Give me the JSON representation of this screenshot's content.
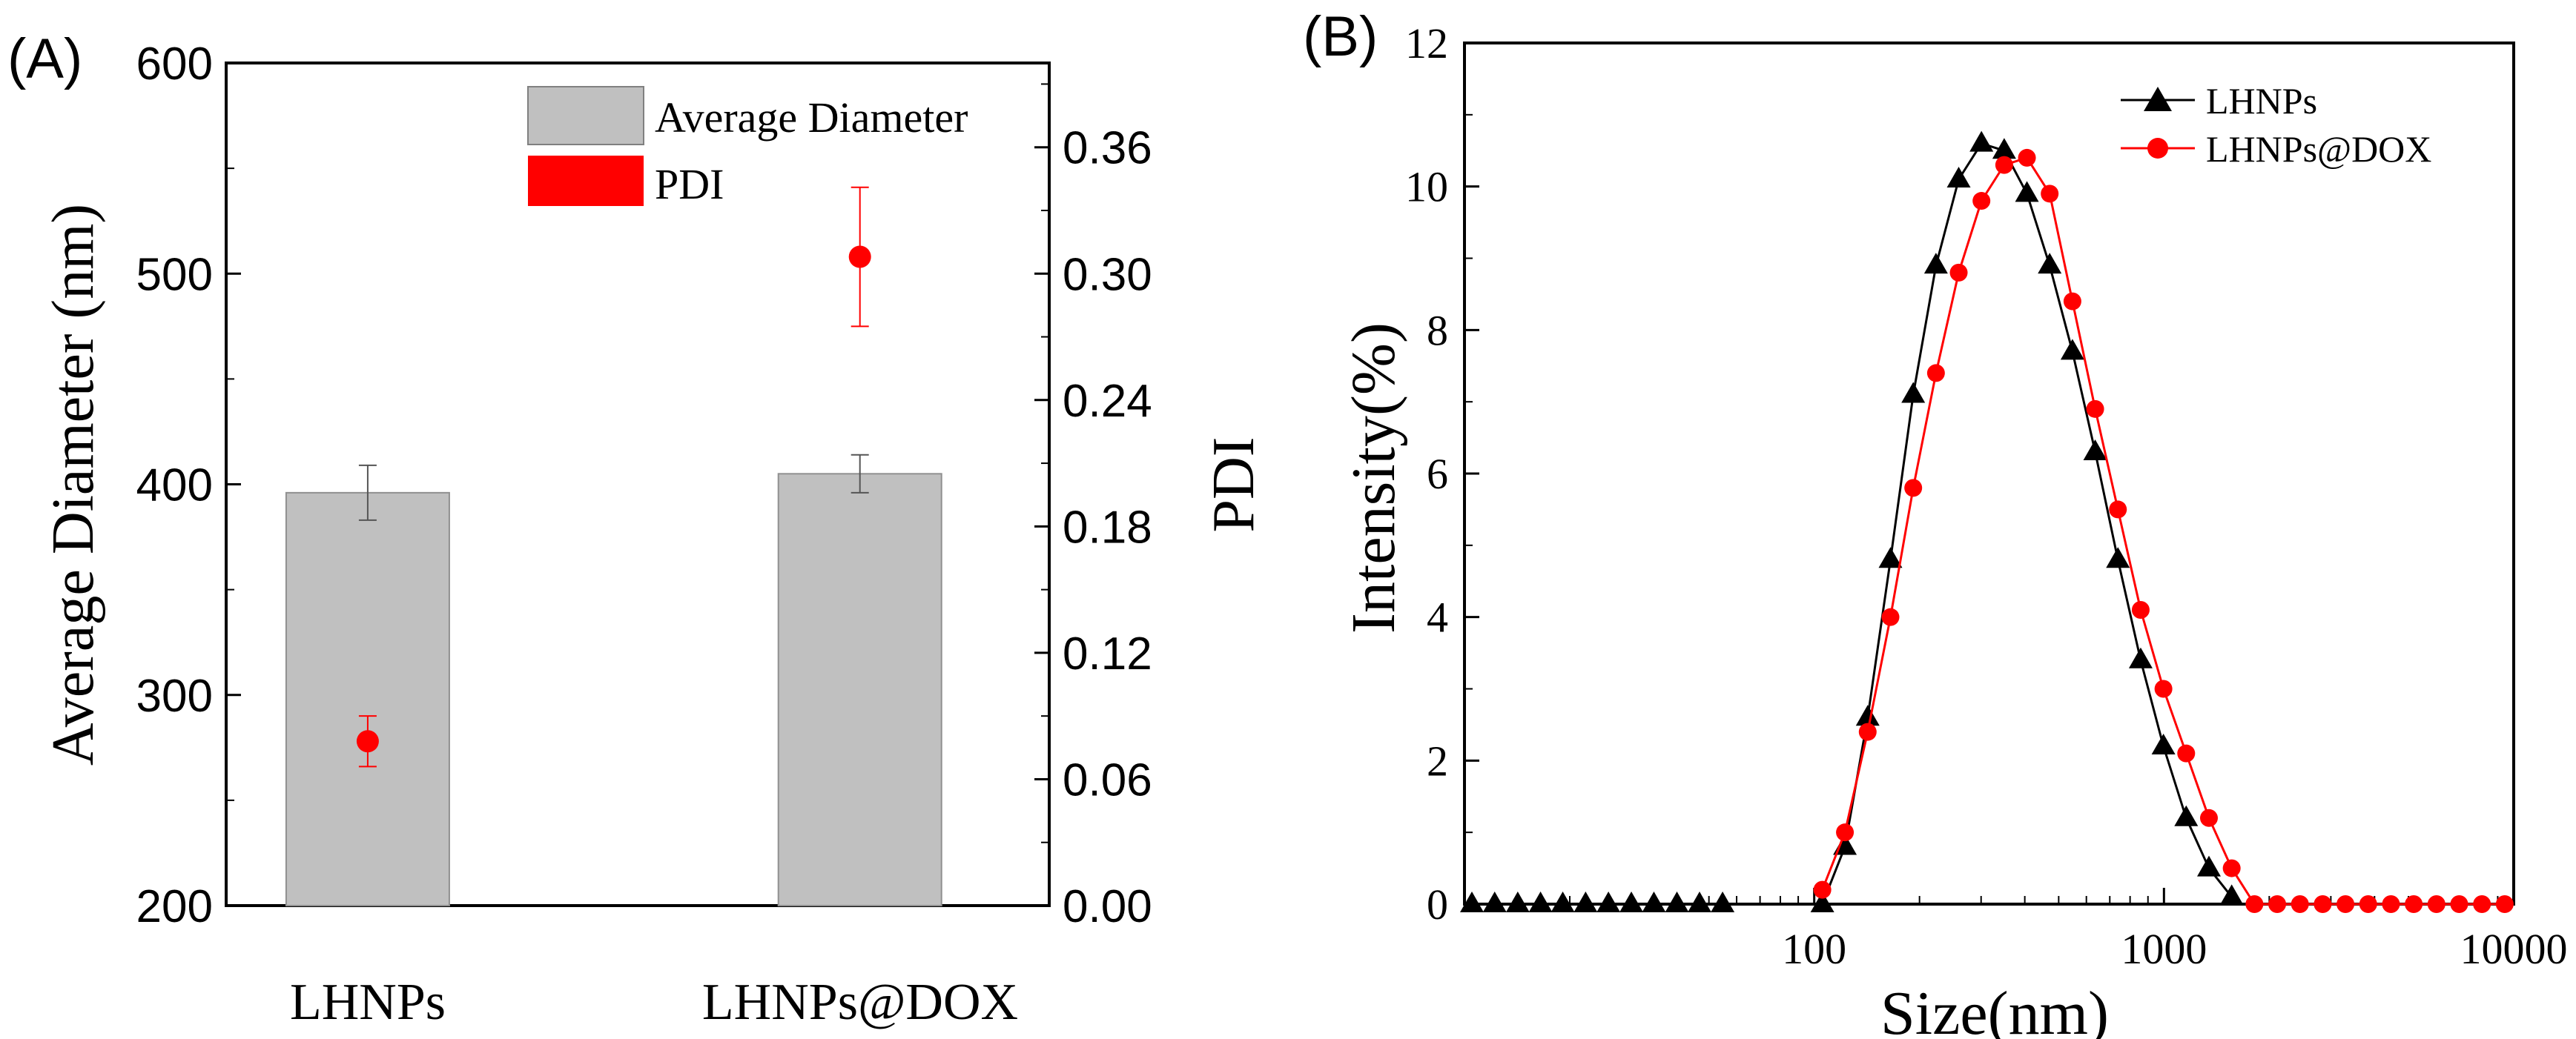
{
  "chart_data": [
    {
      "type": "bar",
      "panel_label": "(A)",
      "categories": [
        "LHNPs",
        "LHNPs@DOX"
      ],
      "ylabel": "Average Diameter (nm)",
      "ylabel_right": "PDI",
      "ylim": [
        200,
        600
      ],
      "yticks": [
        "200",
        "300",
        "400",
        "500",
        "600"
      ],
      "ylim_right": [
        0,
        0.4
      ],
      "yticks_right": [
        "0.00",
        "0.06",
        "0.12",
        "0.18",
        "0.24",
        "0.30",
        "0.36"
      ],
      "legend": [
        "Average Diameter",
        "PDI"
      ],
      "legend_position": "top-right",
      "series": [
        {
          "name": "Average Diameter",
          "kind": "bar",
          "axis": "left",
          "values": [
            396,
            405
          ],
          "errors": [
            13,
            9
          ],
          "color": "#c0c0c0"
        },
        {
          "name": "PDI",
          "kind": "point",
          "axis": "right",
          "values": [
            0.078,
            0.308
          ],
          "errors": [
            0.012,
            0.033
          ],
          "color": "#ff0000"
        }
      ]
    },
    {
      "type": "line",
      "panel_label": "(B)",
      "xlabel": "Size(nm)",
      "ylabel": "Intensity(%)",
      "xscale": "log",
      "xlim": [
        10,
        10000
      ],
      "xticks": [
        "100",
        "1000",
        "10000"
      ],
      "ylim": [
        0,
        12
      ],
      "yticks": [
        "0",
        "2",
        "4",
        "6",
        "8",
        "10",
        "12"
      ],
      "legend_position": "top-right",
      "series": [
        {
          "name": "LHNPs",
          "color": "#000000",
          "marker": "triangle",
          "x": [
            10.5,
            12.2,
            14.2,
            16.5,
            19.1,
            22.2,
            25.8,
            30,
            34.8,
            40.5,
            47,
            54.7,
            105.5,
            122.4,
            142.2,
            165.2,
            191.9,
            222.9,
            258.9,
            300.7,
            349.3,
            405.7,
            471.2,
            547.4,
            635.8,
            738.5,
            857.9,
            996.5,
            1157.5,
            1344.6,
            1561.8
          ],
          "y": [
            0,
            0,
            0,
            0,
            0,
            0,
            0,
            0,
            0,
            0,
            0,
            0,
            0,
            0.8,
            2.6,
            4.8,
            7.1,
            8.9,
            10.1,
            10.6,
            10.5,
            9.9,
            8.9,
            7.7,
            6.3,
            4.8,
            3.4,
            2.2,
            1.2,
            0.5,
            0.1
          ]
        },
        {
          "name": "LHNPs@DOX",
          "color": "#ff0000",
          "marker": "circle",
          "x": [
            1814.2,
            2107.4,
            2447.9,
            2843.5,
            3303,
            3836.7,
            4456.7,
            5176.8,
            6013.4,
            6985.1,
            8113.8,
            9425,
            105.5,
            122.4,
            142.2,
            165.2,
            191.9,
            222.9,
            258.9,
            300.7,
            349.3,
            405.7,
            471.2,
            547.4,
            635.8,
            738.5,
            857.9,
            996.5,
            1157.5,
            1344.6,
            1561.8
          ],
          "y": [
            0,
            0,
            0,
            0,
            0,
            0,
            0,
            0,
            0,
            0,
            0,
            0,
            0.2,
            1,
            2.4,
            4,
            5.8,
            7.4,
            8.8,
            9.8,
            10.3,
            10.4,
            9.9,
            8.4,
            6.9,
            5.5,
            4.1,
            3,
            2.1,
            1.2,
            0.5
          ]
        }
      ]
    }
  ]
}
